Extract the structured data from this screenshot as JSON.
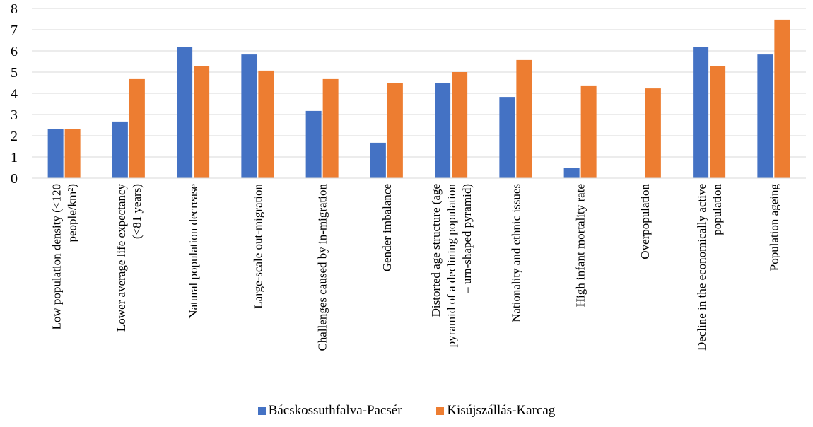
{
  "chart_data": {
    "type": "bar",
    "title": "",
    "xlabel": "",
    "ylabel": "",
    "ylim": [
      0,
      8
    ],
    "yticks": [
      0,
      1,
      2,
      3,
      4,
      5,
      6,
      7,
      8
    ],
    "grid": "horizontal",
    "legend_position": "bottom",
    "categories": [
      [
        "Low population density (<120",
        "people/km²)"
      ],
      [
        "Lower average life expectancy",
        "(<81 years)"
      ],
      [
        "Natural population decrease"
      ],
      [
        "Large-scale out-migration"
      ],
      [
        "Challenges caused by in-migration"
      ],
      [
        "Gender imbalance"
      ],
      [
        "Distorted age structure (age",
        "pyramid of a declining population",
        "– urn-shaped pyramid)"
      ],
      [
        "Nationality and ethnic issues"
      ],
      [
        "High infant mortality rate"
      ],
      [
        "Overpopulation"
      ],
      [
        "Decline in the economically active",
        "population"
      ],
      [
        "Population ageing"
      ]
    ],
    "series": [
      {
        "name": "Bácskossuthfalva-Pacsér",
        "color": "#4472C4",
        "values": [
          2.33,
          2.67,
          6.17,
          5.83,
          3.17,
          1.67,
          4.5,
          3.83,
          0.5,
          0,
          6.17,
          5.83
        ]
      },
      {
        "name": "Kisújszállás-Karcag",
        "color": "#ED7D31",
        "values": [
          2.33,
          4.67,
          5.27,
          5.07,
          4.67,
          4.5,
          5.0,
          5.57,
          4.37,
          4.23,
          5.27,
          7.47
        ]
      }
    ]
  }
}
